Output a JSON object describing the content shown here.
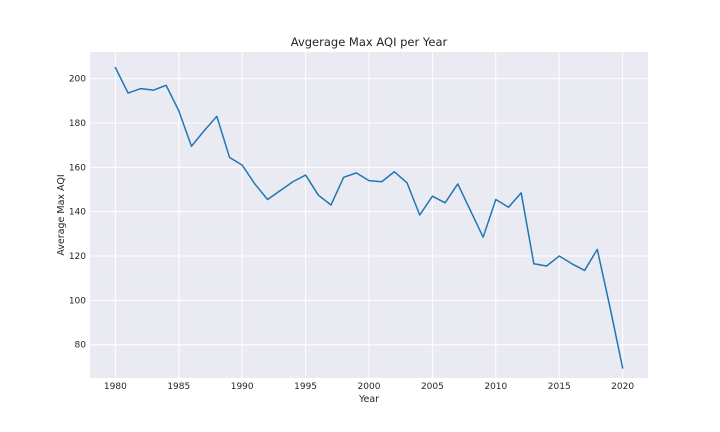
{
  "chart_data": {
    "type": "line",
    "title": "Avgerage Max AQI per Year",
    "xlabel": "Year",
    "ylabel": "Average Max AQI",
    "xlim": [
      1978,
      2022
    ],
    "ylim": [
      65,
      212
    ],
    "x_ticks": [
      1980,
      1985,
      1990,
      1995,
      2000,
      2005,
      2010,
      2015,
      2020
    ],
    "y_ticks": [
      80,
      100,
      120,
      140,
      160,
      180,
      200
    ],
    "grid": true,
    "background_color": "#eaeaf2",
    "series": [
      {
        "color": "#1f77b4",
        "x": [
          1980,
          1981,
          1982,
          1983,
          1984,
          1985,
          1986,
          1987,
          1988,
          1989,
          1990,
          1991,
          1992,
          1993,
          1994,
          1995,
          1996,
          1997,
          1998,
          1999,
          2000,
          2001,
          2002,
          2003,
          2004,
          2005,
          2006,
          2007,
          2008,
          2009,
          2010,
          2011,
          2012,
          2013,
          2014,
          2015,
          2016,
          2017,
          2018,
          2019,
          2020
        ],
        "values": [
          205,
          193.5,
          195.5,
          194.8,
          197,
          185.5,
          169.5,
          176.5,
          183,
          164.5,
          161,
          152.5,
          145.5,
          149.5,
          153.5,
          156.5,
          147.5,
          143,
          155.5,
          157.5,
          154,
          153.5,
          158,
          153,
          138.5,
          147,
          144,
          152.5,
          140.5,
          128.5,
          145.5,
          142,
          148.5,
          116.5,
          115.5,
          120,
          116.5,
          113.5,
          123,
          97,
          69.5
        ]
      }
    ]
  }
}
